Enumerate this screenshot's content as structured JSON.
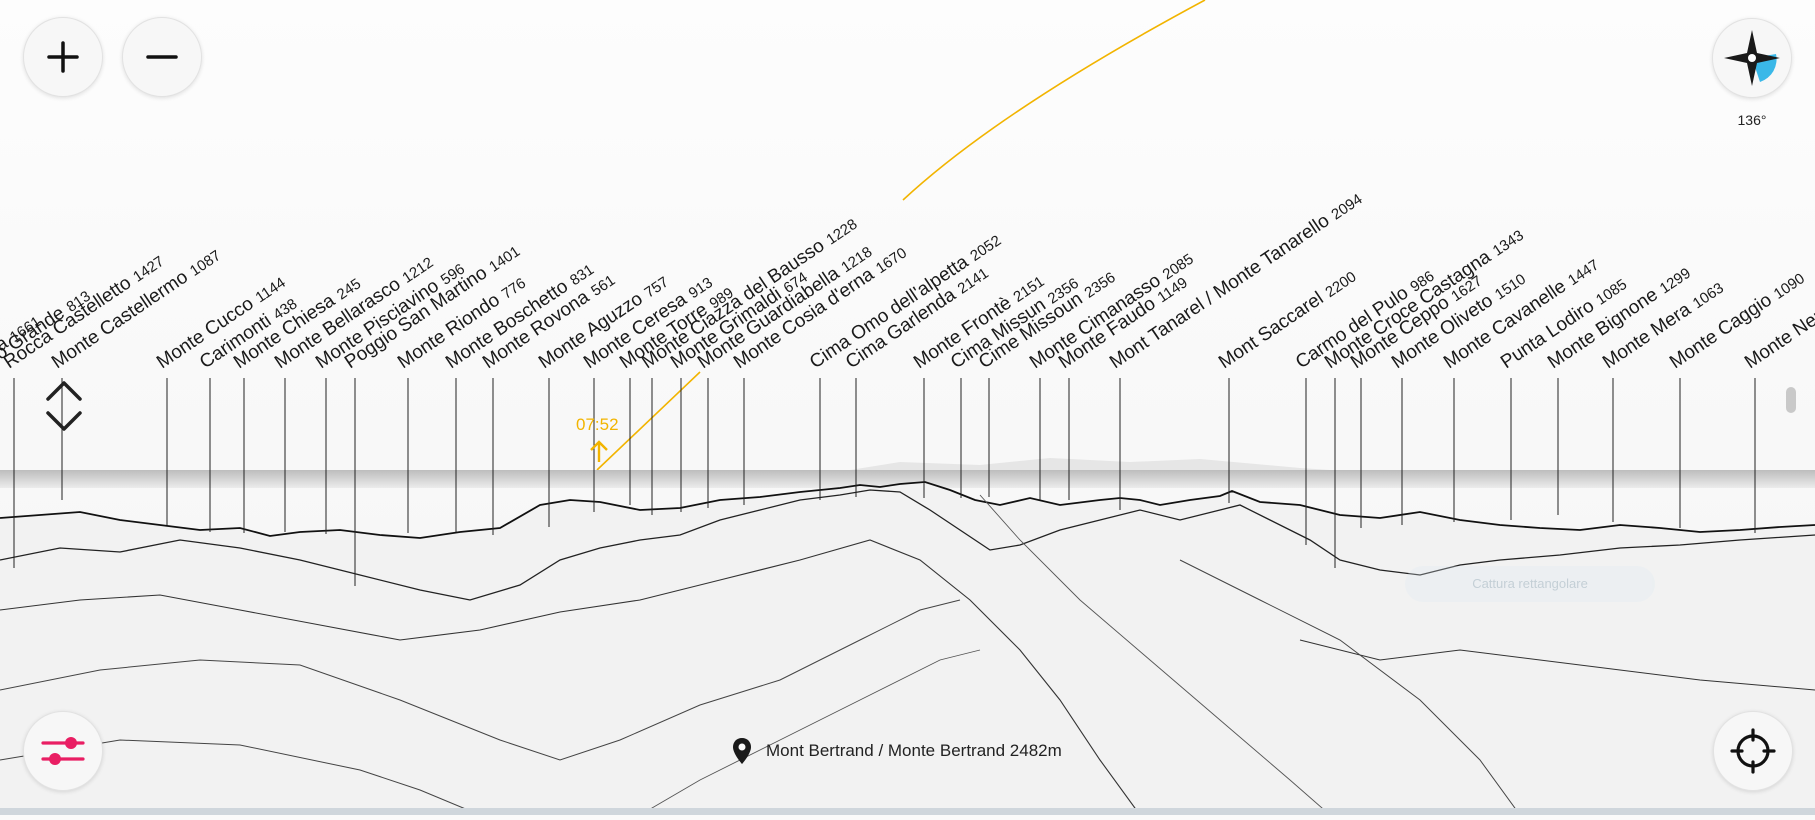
{
  "accent_color": "#e91e63",
  "sun_color": "#f2b400",
  "controls": {
    "zoom_in_icon": "plus-icon",
    "zoom_out_icon": "minus-icon",
    "compass_icon": "compass-icon",
    "heading": "136°",
    "settings_icon": "sliders-icon",
    "locate_icon": "crosshair-icon",
    "scroll_icon": "chevron-up-down-icon"
  },
  "sun": {
    "time": "07:52"
  },
  "location": {
    "icon": "map-pin-icon",
    "name": "Mont Bertrand / Monte Bertrand",
    "elevation": "2482",
    "unit": "m"
  },
  "hint_text": "Cattura rettangolare",
  "peaks": [
    {
      "name": "...dia",
      "elev": "1661"
    },
    {
      "name": "...o Grande",
      "elev": "813"
    },
    {
      "name": "Rocca Castelletto",
      "elev": "1427"
    },
    {
      "name": "Monte Castellermo",
      "elev": "1087"
    },
    {
      "name": "Monte Cucco",
      "elev": "1144"
    },
    {
      "name": "Carimonti",
      "elev": "438"
    },
    {
      "name": "Monte Chiesa",
      "elev": "245"
    },
    {
      "name": "Monte Bellarasco",
      "elev": "1212"
    },
    {
      "name": "Monte Pisciavino",
      "elev": "596"
    },
    {
      "name": "Poggio San Martino",
      "elev": "1401"
    },
    {
      "name": "Monte Riondo",
      "elev": "776"
    },
    {
      "name": "Monte Boschetto",
      "elev": "831"
    },
    {
      "name": "Monte Rovona",
      "elev": "561"
    },
    {
      "name": "Monte Aguzzo",
      "elev": "757"
    },
    {
      "name": "Monte Ceresa",
      "elev": "913"
    },
    {
      "name": "Monte Torre",
      "elev": "989"
    },
    {
      "name": "Monte Ciazza del Bausso",
      "elev": "1228"
    },
    {
      "name": "Monte Grimaldi",
      "elev": "674"
    },
    {
      "name": "Monte Guardiabella",
      "elev": "1218"
    },
    {
      "name": "Monte Cosia d'erna",
      "elev": "1670"
    },
    {
      "name": "Cima Omo dell'alpetta",
      "elev": "2052"
    },
    {
      "name": "Cima Garlenda",
      "elev": "2141"
    },
    {
      "name": "Monte Frontè",
      "elev": "2151"
    },
    {
      "name": "Cima Missun",
      "elev": "2356"
    },
    {
      "name": "Cime Missoun",
      "elev": "2356"
    },
    {
      "name": "Monte Cimanasso",
      "elev": "2085"
    },
    {
      "name": "Monte Faudo",
      "elev": "1149"
    },
    {
      "name": "Mont Tanarel / Monte Tanarello",
      "elev": "2094"
    },
    {
      "name": "Mont Saccarel",
      "elev": "2200"
    },
    {
      "name": "Carmo del Pulo",
      "elev": "986"
    },
    {
      "name": "Monte Croce Castagna",
      "elev": "1343"
    },
    {
      "name": "Monte Ceppo",
      "elev": "1627"
    },
    {
      "name": "Monte Oliveto",
      "elev": "1510"
    },
    {
      "name": "Monte Cavanelle",
      "elev": "1447"
    },
    {
      "name": "Punta Lodiro",
      "elev": "1085"
    },
    {
      "name": "Monte Bignone",
      "elev": "1299"
    },
    {
      "name": "Monte Mera",
      "elev": "1063"
    },
    {
      "name": "Monte Caggio",
      "elev": "1090"
    },
    {
      "name": "Monte Ner...",
      "elev": ""
    }
  ]
}
